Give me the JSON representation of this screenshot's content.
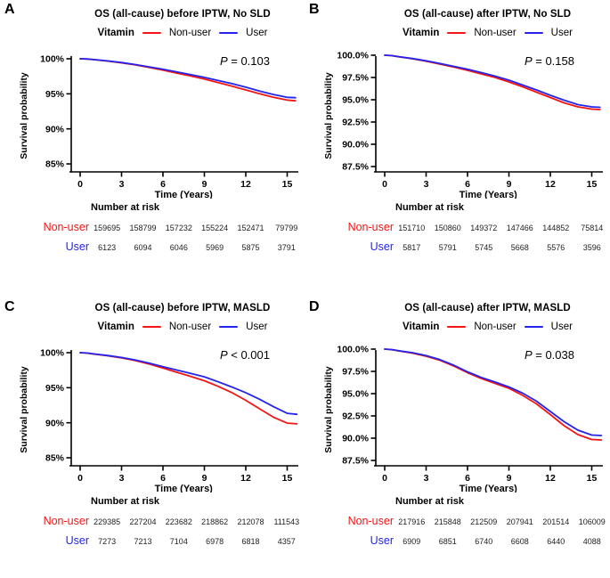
{
  "colors": {
    "nonuser": "#f51414",
    "user": "#2424ee",
    "axis": "#000000"
  },
  "chart_data": [
    {
      "letter": "A",
      "type": "line",
      "title": "OS (all-cause) before IPTW, No SLD",
      "p_value": "P = 0.103",
      "xlabel": "Time (Years)",
      "ylabel": "Survival probability",
      "legend": {
        "title": "Vitamin",
        "position": "top",
        "items": [
          {
            "label": "Non-user",
            "color": "#f51414"
          },
          {
            "label": "User",
            "color": "#2424ee"
          }
        ]
      },
      "x_ticks": [
        0,
        3,
        6,
        9,
        12,
        15
      ],
      "xlim": [
        0,
        15
      ],
      "ylim": [
        83.86,
        100.89
      ],
      "grid": false,
      "y_ticks": [
        {
          "v": 100,
          "label": "100%"
        },
        {
          "v": 95,
          "label": "95%"
        },
        {
          "v": 90,
          "label": "90%"
        },
        {
          "v": 85,
          "label": "85%"
        }
      ],
      "series": [
        {
          "name": "Non-user",
          "color": "#f51414",
          "points": [
            [
              0,
              100
            ],
            [
              0.5,
              99.96
            ],
            [
              1,
              99.87
            ],
            [
              2,
              99.67
            ],
            [
              3,
              99.42
            ],
            [
              4,
              99.12
            ],
            [
              5,
              98.77
            ],
            [
              6,
              98.38
            ],
            [
              7,
              97.95
            ],
            [
              8,
              97.55
            ],
            [
              9,
              97.1
            ],
            [
              10,
              96.6
            ],
            [
              11,
              96.1
            ],
            [
              12,
              95.55
            ],
            [
              13,
              95.0
            ],
            [
              14,
              94.5
            ],
            [
              15,
              94.1
            ],
            [
              15.6,
              94.0
            ]
          ]
        },
        {
          "name": "User",
          "color": "#2424ee",
          "points": [
            [
              0,
              100
            ],
            [
              0.5,
              99.97
            ],
            [
              1,
              99.88
            ],
            [
              2,
              99.7
            ],
            [
              3,
              99.47
            ],
            [
              4,
              99.18
            ],
            [
              5,
              98.85
            ],
            [
              6,
              98.5
            ],
            [
              7,
              98.12
            ],
            [
              8,
              97.75
            ],
            [
              9,
              97.35
            ],
            [
              10,
              96.9
            ],
            [
              11,
              96.45
            ],
            [
              12,
              95.95
            ],
            [
              13,
              95.4
            ],
            [
              14,
              94.9
            ],
            [
              15,
              94.5
            ],
            [
              15.6,
              94.45
            ]
          ]
        }
      ],
      "risk_table": {
        "header": "Number at risk",
        "rows": [
          {
            "label": "Non-user",
            "color": "#f51414",
            "values": [
              "159695",
              "158799",
              "157232",
              "155224",
              "152471",
              "79799"
            ]
          },
          {
            "label": "User",
            "color": "#2424ee",
            "values": [
              "6123",
              "6094",
              "6046",
              "5969",
              "5875",
              "3791"
            ]
          }
        ]
      }
    },
    {
      "letter": "B",
      "type": "line",
      "title": "OS (all-cause) after IPTW, No SLD",
      "p_value": "P = 0.158",
      "xlabel": "Time (Years)",
      "ylabel": "Survival probability",
      "legend": {
        "title": "Vitamin",
        "position": "top",
        "items": [
          {
            "label": "Non-user",
            "color": "#f51414"
          },
          {
            "label": "User",
            "color": "#2424ee"
          }
        ]
      },
      "x_ticks": [
        0,
        3,
        6,
        9,
        12,
        15
      ],
      "xlim": [
        0,
        15
      ],
      "ylim": [
        86.9,
        100.3
      ],
      "grid": false,
      "y_ticks": [
        {
          "v": 100,
          "label": "100.0%"
        },
        {
          "v": 97.5,
          "label": "97.5%"
        },
        {
          "v": 95,
          "label": "95.0%"
        },
        {
          "v": 92.5,
          "label": "92.5%"
        },
        {
          "v": 90,
          "label": "90.0%"
        },
        {
          "v": 87.5,
          "label": "87.5%"
        }
      ],
      "series": [
        {
          "name": "Non-user",
          "color": "#f51414",
          "points": [
            [
              0,
              100
            ],
            [
              0.5,
              99.95
            ],
            [
              1,
              99.83
            ],
            [
              2,
              99.6
            ],
            [
              3,
              99.32
            ],
            [
              4,
              99.0
            ],
            [
              5,
              98.67
            ],
            [
              6,
              98.3
            ],
            [
              7,
              97.9
            ],
            [
              8,
              97.5
            ],
            [
              9,
              97.0
            ],
            [
              10,
              96.45
            ],
            [
              11,
              95.85
            ],
            [
              12,
              95.25
            ],
            [
              13,
              94.65
            ],
            [
              14,
              94.2
            ],
            [
              15,
              93.95
            ],
            [
              15.6,
              93.9
            ]
          ]
        },
        {
          "name": "User",
          "color": "#2424ee",
          "points": [
            [
              0,
              100
            ],
            [
              0.5,
              99.96
            ],
            [
              1,
              99.84
            ],
            [
              2,
              99.63
            ],
            [
              3,
              99.37
            ],
            [
              4,
              99.07
            ],
            [
              5,
              98.75
            ],
            [
              6,
              98.42
            ],
            [
              7,
              98.05
            ],
            [
              8,
              97.65
            ],
            [
              9,
              97.2
            ],
            [
              10,
              96.65
            ],
            [
              11,
              96.1
            ],
            [
              12,
              95.5
            ],
            [
              13,
              94.95
            ],
            [
              14,
              94.45
            ],
            [
              15,
              94.2
            ],
            [
              15.6,
              94.15
            ]
          ]
        }
      ],
      "risk_table": {
        "header": "Number at risk",
        "rows": [
          {
            "label": "Non-user",
            "color": "#f51414",
            "values": [
              "151710",
              "150860",
              "149372",
              "147466",
              "144852",
              "75814"
            ]
          },
          {
            "label": "User",
            "color": "#2424ee",
            "values": [
              "5817",
              "5791",
              "5745",
              "5668",
              "5576",
              "3596"
            ]
          }
        ]
      }
    },
    {
      "letter": "C",
      "type": "line",
      "title": "OS (all-cause) before IPTW, MASLD",
      "p_value": "P < 0.001",
      "xlabel": "Time (Years)",
      "ylabel": "Survival probability",
      "legend": {
        "title": "Vitamin",
        "position": "top",
        "items": [
          {
            "label": "Non-user",
            "color": "#f51414"
          },
          {
            "label": "User",
            "color": "#2424ee"
          }
        ]
      },
      "x_ticks": [
        0,
        3,
        6,
        9,
        12,
        15
      ],
      "xlim": [
        0,
        15
      ],
      "ylim": [
        83.86,
        100.89
      ],
      "grid": false,
      "y_ticks": [
        {
          "v": 100,
          "label": "100%"
        },
        {
          "v": 95,
          "label": "95%"
        },
        {
          "v": 90,
          "label": "90%"
        },
        {
          "v": 85,
          "label": "85%"
        }
      ],
      "series": [
        {
          "name": "Non-user",
          "color": "#f51414",
          "points": [
            [
              0,
              100
            ],
            [
              0.5,
              99.94
            ],
            [
              1,
              99.8
            ],
            [
              2,
              99.55
            ],
            [
              3,
              99.25
            ],
            [
              4,
              98.87
            ],
            [
              5,
              98.37
            ],
            [
              6,
              97.8
            ],
            [
              7,
              97.2
            ],
            [
              8,
              96.62
            ],
            [
              9,
              96.0
            ],
            [
              10,
              95.2
            ],
            [
              11,
              94.3
            ],
            [
              12,
              93.2
            ],
            [
              13,
              92.0
            ],
            [
              14,
              90.8
            ],
            [
              15,
              89.95
            ],
            [
              15.7,
              89.85
            ]
          ]
        },
        {
          "name": "User",
          "color": "#2424ee",
          "points": [
            [
              0,
              100
            ],
            [
              0.5,
              99.95
            ],
            [
              1,
              99.82
            ],
            [
              2,
              99.6
            ],
            [
              3,
              99.32
            ],
            [
              4,
              98.95
            ],
            [
              5,
              98.5
            ],
            [
              6,
              98.0
            ],
            [
              7,
              97.52
            ],
            [
              8,
              97.05
            ],
            [
              9,
              96.55
            ],
            [
              10,
              95.85
            ],
            [
              11,
              95.1
            ],
            [
              12,
              94.3
            ],
            [
              13,
              93.35
            ],
            [
              14,
              92.3
            ],
            [
              15,
              91.35
            ],
            [
              15.7,
              91.2
            ]
          ]
        }
      ],
      "risk_table": {
        "header": "Number at risk",
        "rows": [
          {
            "label": "Non-user",
            "color": "#f51414",
            "values": [
              "229385",
              "227204",
              "223682",
              "218862",
              "212078",
              "111543"
            ]
          },
          {
            "label": "User",
            "color": "#2424ee",
            "values": [
              "7273",
              "7213",
              "7104",
              "6978",
              "6818",
              "4357"
            ]
          }
        ]
      }
    },
    {
      "letter": "D",
      "type": "line",
      "title": "OS (all-cause) after IPTW, MASLD",
      "p_value": "P = 0.038",
      "xlabel": "Time (Years)",
      "ylabel": "Survival probability",
      "legend": {
        "title": "Vitamin",
        "position": "top",
        "items": [
          {
            "label": "Non-user",
            "color": "#f51414"
          },
          {
            "label": "User",
            "color": "#2424ee"
          }
        ]
      },
      "x_ticks": [
        0,
        3,
        6,
        9,
        12,
        15
      ],
      "xlim": [
        0,
        15
      ],
      "ylim": [
        86.9,
        100.3
      ],
      "grid": false,
      "y_ticks": [
        {
          "v": 100,
          "label": "100.0%"
        },
        {
          "v": 97.5,
          "label": "97.5%"
        },
        {
          "v": 95,
          "label": "95.0%"
        },
        {
          "v": 92.5,
          "label": "92.5%"
        },
        {
          "v": 90,
          "label": "90.0%"
        },
        {
          "v": 87.5,
          "label": "87.5%"
        }
      ],
      "series": [
        {
          "name": "Non-user",
          "color": "#f51414",
          "points": [
            [
              0,
              100
            ],
            [
              0.5,
              99.94
            ],
            [
              1,
              99.8
            ],
            [
              2,
              99.55
            ],
            [
              3,
              99.2
            ],
            [
              4,
              98.75
            ],
            [
              5,
              98.1
            ],
            [
              6,
              97.35
            ],
            [
              7,
              96.7
            ],
            [
              8,
              96.15
            ],
            [
              9,
              95.6
            ],
            [
              10,
              94.8
            ],
            [
              11,
              93.85
            ],
            [
              12,
              92.65
            ],
            [
              13,
              91.4
            ],
            [
              14,
              90.4
            ],
            [
              15,
              89.85
            ],
            [
              15.7,
              89.8
            ]
          ]
        },
        {
          "name": "User",
          "color": "#2424ee",
          "points": [
            [
              0,
              100
            ],
            [
              0.5,
              99.95
            ],
            [
              1,
              99.82
            ],
            [
              2,
              99.6
            ],
            [
              3,
              99.27
            ],
            [
              4,
              98.82
            ],
            [
              5,
              98.2
            ],
            [
              6,
              97.45
            ],
            [
              7,
              96.82
            ],
            [
              8,
              96.3
            ],
            [
              9,
              95.75
            ],
            [
              10,
              95.05
            ],
            [
              11,
              94.15
            ],
            [
              12,
              93.0
            ],
            [
              13,
              91.85
            ],
            [
              14,
              90.9
            ],
            [
              15,
              90.35
            ],
            [
              15.7,
              90.3
            ]
          ]
        }
      ],
      "risk_table": {
        "header": "Number at risk",
        "rows": [
          {
            "label": "Non-user",
            "color": "#f51414",
            "values": [
              "217916",
              "215848",
              "212509",
              "207941",
              "201514",
              "106009"
            ]
          },
          {
            "label": "User",
            "color": "#2424ee",
            "values": [
              "6909",
              "6851",
              "6740",
              "6608",
              "6440",
              "4088"
            ]
          }
        ]
      }
    }
  ]
}
